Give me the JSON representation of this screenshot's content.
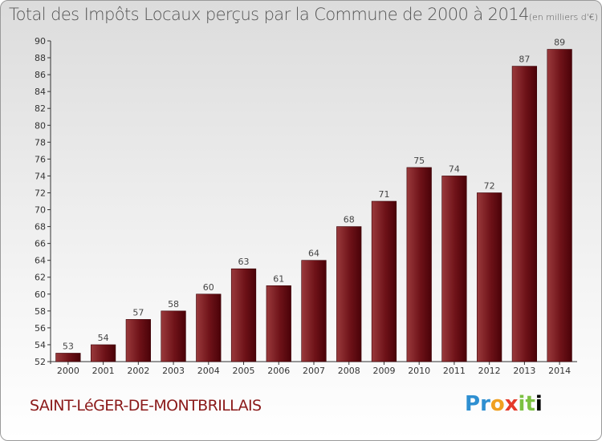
{
  "chart_data": {
    "type": "bar",
    "title": "Total des Impôts Locaux perçus par la Commune de 2000 à 2014",
    "title_unit": "(en milliers d'€)",
    "categories": [
      "2000",
      "2001",
      "2002",
      "2003",
      "2004",
      "2005",
      "2006",
      "2007",
      "2008",
      "2009",
      "2010",
      "2011",
      "2012",
      "2013",
      "2014"
    ],
    "values": [
      53,
      54,
      57,
      58,
      60,
      63,
      61,
      64,
      68,
      71,
      75,
      74,
      72,
      87,
      89
    ],
    "ylim": [
      52,
      90
    ],
    "yticks": [
      52,
      54,
      56,
      58,
      60,
      62,
      64,
      66,
      68,
      70,
      72,
      74,
      76,
      78,
      80,
      82,
      84,
      86,
      88,
      90
    ],
    "grid": false,
    "legend": "none",
    "bar_color": "#7a1a1e"
  },
  "footer": {
    "commune": "SAINT-LéGER-DE-MONTBRILLAIS",
    "logo_letters": [
      "P",
      "r",
      "o",
      "x",
      "i",
      "t",
      "i"
    ]
  }
}
